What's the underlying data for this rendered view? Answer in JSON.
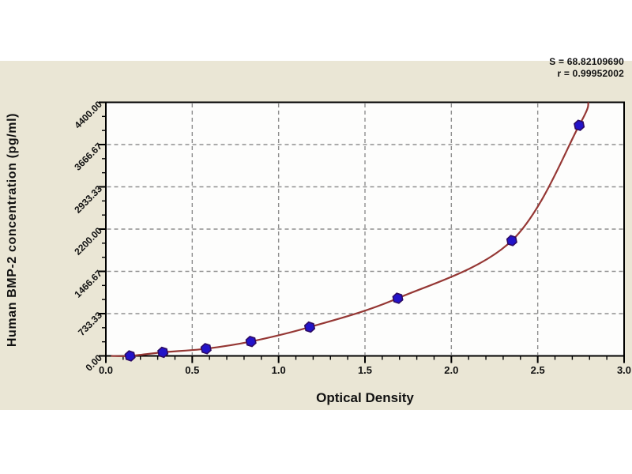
{
  "chart_data": {
    "type": "scatter",
    "title": "",
    "x_label": "Optical Density",
    "y_label": "Human BMP-2 concentration (pg/ml)",
    "xlim": [
      0.0,
      3.0
    ],
    "ylim": [
      0,
      4400
    ],
    "grid": true,
    "legend": "none",
    "x_tick_labels": [
      "0.0",
      "0.5",
      "1.0",
      "1.5",
      "2.0",
      "2.5",
      "3.0"
    ],
    "y_tick_labels": [
      "0.00",
      "733.33",
      "1466.67",
      "2200.00",
      "2933.33",
      "3666.67",
      "4400.00"
    ],
    "points": [
      {
        "od": 0.14,
        "conc": 0
      },
      {
        "od": 0.33,
        "conc": 62.5
      },
      {
        "od": 0.58,
        "conc": 125
      },
      {
        "od": 0.84,
        "conc": 250
      },
      {
        "od": 1.18,
        "conc": 500
      },
      {
        "od": 1.69,
        "conc": 1000
      },
      {
        "od": 2.35,
        "conc": 2000
      },
      {
        "od": 2.74,
        "conc": 4000
      }
    ],
    "curve_extension": {
      "start": {
        "od": 0.03,
        "conc": 0
      },
      "end": {
        "od": 2.794,
        "conc": 4400
      }
    },
    "fit": {
      "s_label": "S = 68.82109690",
      "r_label": "r = 0.99952002"
    },
    "colors": {
      "band_background": "#eae6d5",
      "plot_background": "#fdfdfc",
      "frame": "#000000",
      "grid": "#8f8f8f",
      "curve": "#953734",
      "marker_fill": "#2313c9",
      "marker_stroke": "#2c0b63",
      "text": "#111111"
    }
  }
}
